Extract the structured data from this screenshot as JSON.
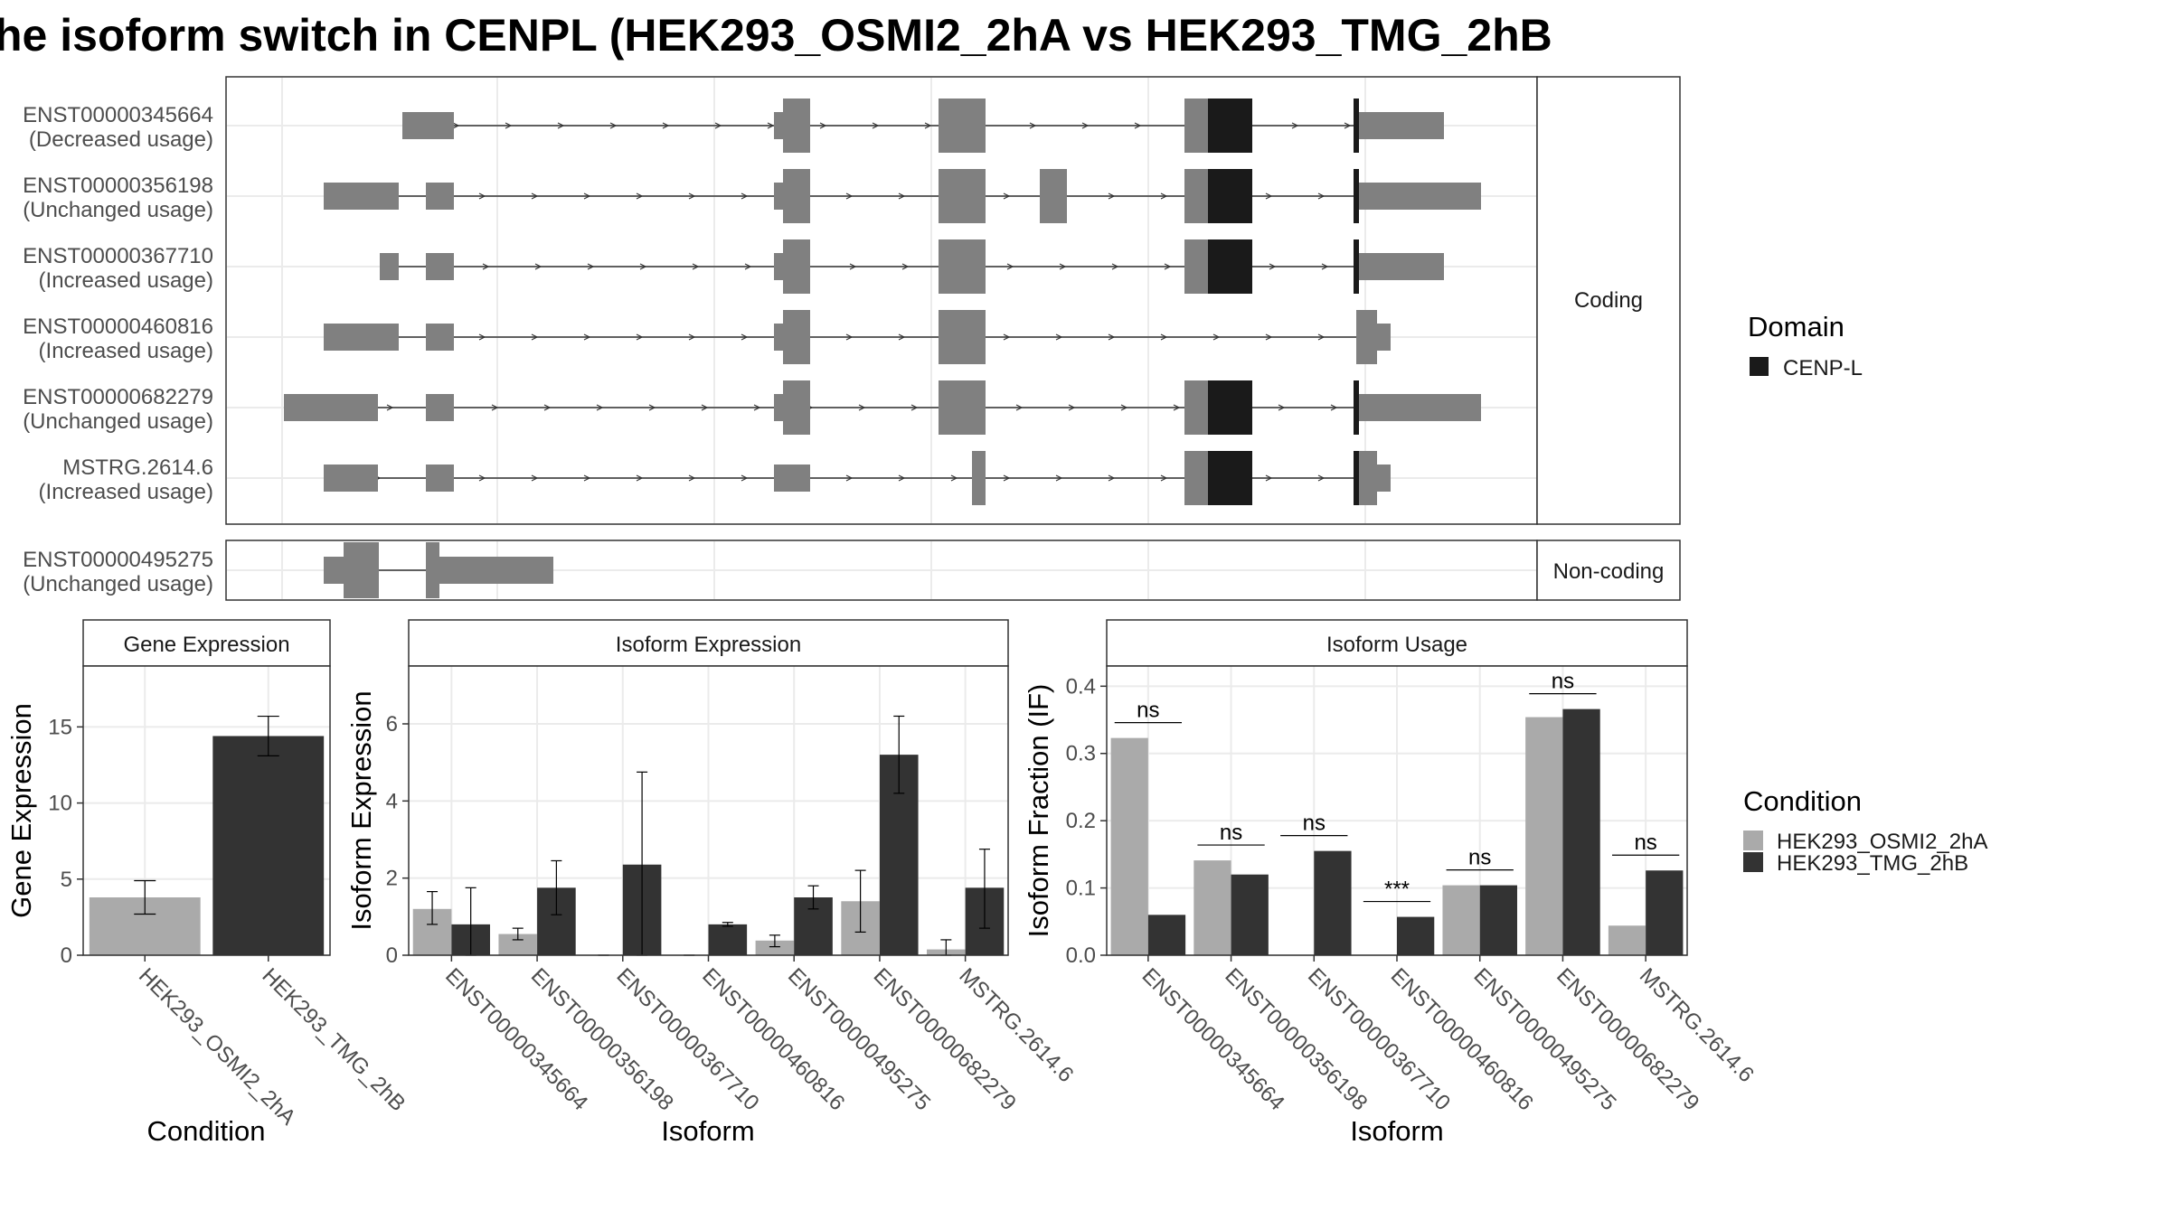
{
  "title": "he isoform switch in CENPL (HEK293_OSMI2_2hA vs HEK293_TMG_2hB",
  "colors": {
    "osmi": "#aaaaaa",
    "tmg": "#333333",
    "exon": "#808080",
    "domain": "#1a1a1a",
    "grid": "#ebebeb",
    "strip": "#ffffff"
  },
  "structure": {
    "panel_coding_label": "Coding",
    "panel_noncoding_label": "Non-coding",
    "legend_title": "Domain",
    "legend_item": "CENP-L",
    "coding_isoforms": [
      {
        "id": "ENST00000345664",
        "status": "(Decreased usage)"
      },
      {
        "id": "ENST00000356198",
        "status": "(Unchanged usage)"
      },
      {
        "id": "ENST00000367710",
        "status": "(Increased usage)"
      },
      {
        "id": "ENST00000460816",
        "status": "(Increased usage)"
      },
      {
        "id": "ENST00000682279",
        "status": "(Unchanged usage)"
      },
      {
        "id": "MSTRG.2614.6",
        "status": "(Increased usage)"
      }
    ],
    "noncoding_isoforms": [
      {
        "id": "ENST00000495275",
        "status": "(Unchanged usage)"
      }
    ]
  },
  "chart_data": [
    {
      "type": "bar",
      "title": "Gene Expression",
      "xlabel": "Condition",
      "ylabel": "Gene Expression",
      "ylim": [
        0,
        19
      ],
      "yticks": [
        0,
        5,
        10,
        15
      ],
      "categories": [
        "HEK293_OSMI2_2hA",
        "HEK293_TMG_2hB"
      ],
      "values": [
        3.8,
        14.4
      ],
      "errors": [
        [
          2.7,
          4.9
        ],
        [
          13.1,
          15.7
        ]
      ]
    },
    {
      "type": "bar",
      "title": "Isoform Expression",
      "xlabel": "Isoform",
      "ylabel": "Isoform Expression",
      "ylim": [
        0,
        7.5
      ],
      "yticks": [
        0,
        2,
        4,
        6
      ],
      "categories": [
        "ENST00000345664",
        "ENST00000356198",
        "ENST00000367710",
        "ENST00000460816",
        "ENST00000495275",
        "ENST00000682279",
        "MSTRG.2614.6"
      ],
      "series": [
        {
          "name": "HEK293_OSMI2_2hA",
          "values": [
            1.2,
            0.55,
            0.0,
            0.0,
            0.38,
            1.4,
            0.15
          ],
          "errors": [
            [
              0.8,
              1.65
            ],
            [
              0.4,
              0.7
            ],
            [
              0,
              0
            ],
            [
              0,
              0
            ],
            [
              0.22,
              0.52
            ],
            [
              0.6,
              2.2
            ],
            [
              0.0,
              0.4
            ]
          ]
        },
        {
          "name": "HEK293_TMG_2hB",
          "values": [
            0.8,
            1.75,
            2.35,
            0.8,
            1.5,
            5.2,
            1.75
          ],
          "errors": [
            [
              0.0,
              1.75
            ],
            [
              1.05,
              2.45
            ],
            [
              0.0,
              4.75
            ],
            [
              0.75,
              0.85
            ],
            [
              1.2,
              1.8
            ],
            [
              4.2,
              6.2
            ],
            [
              0.7,
              2.75
            ]
          ]
        }
      ]
    },
    {
      "type": "bar",
      "title": "Isoform Usage",
      "xlabel": "Isoform",
      "ylabel": "Isoform Fraction (IF)",
      "ylim": [
        0,
        0.43
      ],
      "yticks": [
        "0.0",
        "0.1",
        "0.2",
        "0.3",
        "0.4"
      ],
      "categories": [
        "ENST00000345664",
        "ENST00000356198",
        "ENST00000367710",
        "ENST00000460816",
        "ENST00000495275",
        "ENST00000682279",
        "MSTRG.2614.6"
      ],
      "series": [
        {
          "name": "HEK293_OSMI2_2hA",
          "values": [
            0.323,
            0.141,
            0.0,
            0.0,
            0.104,
            0.354,
            0.044
          ]
        },
        {
          "name": "HEK293_TMG_2hB",
          "values": [
            0.06,
            0.12,
            0.155,
            0.057,
            0.104,
            0.366,
            0.126
          ]
        }
      ],
      "significance": [
        "ns",
        "ns",
        "ns",
        "***",
        "ns",
        "ns",
        "ns"
      ]
    }
  ],
  "legend": {
    "title": "Condition",
    "items": [
      "HEK293_OSMI2_2hA",
      "HEK293_TMG_2hB"
    ]
  }
}
